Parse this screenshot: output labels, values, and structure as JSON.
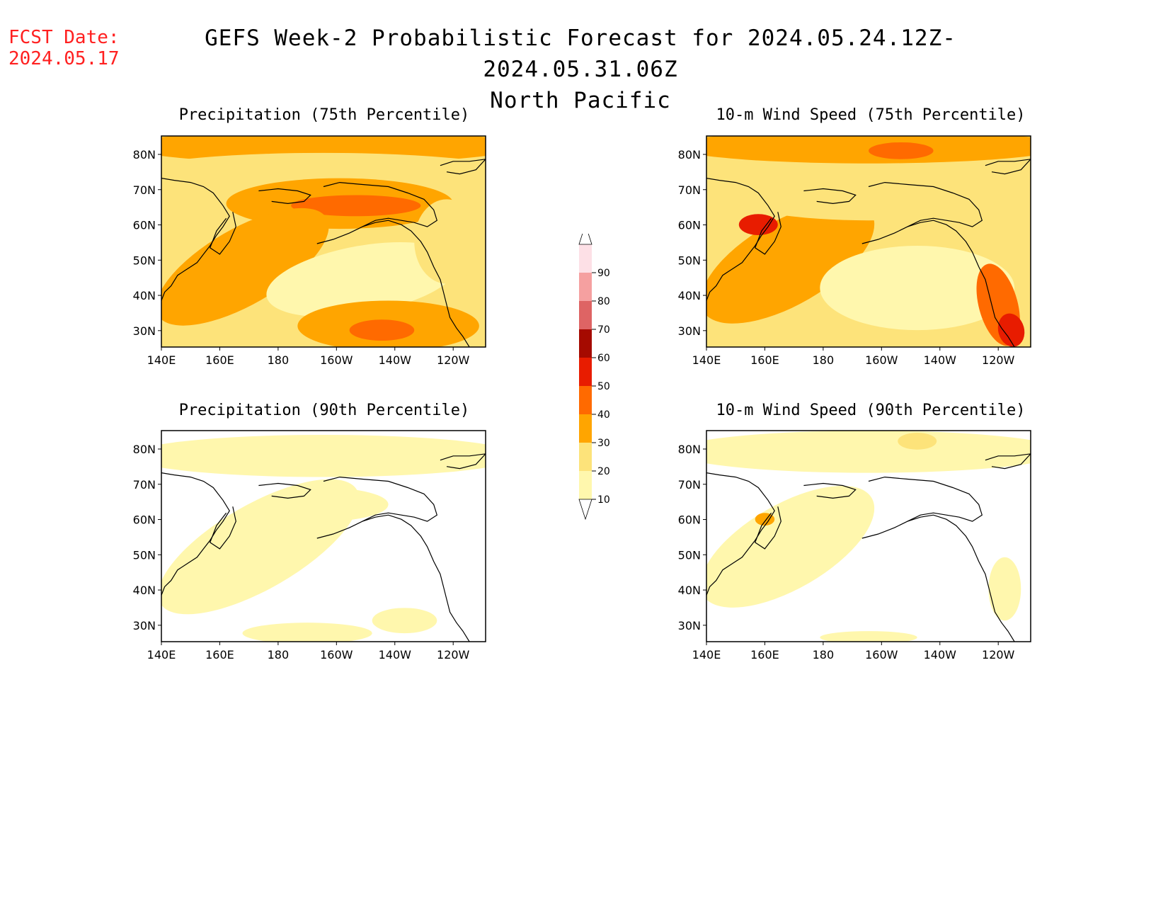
{
  "header": {
    "fcst_label": "FCST Date:",
    "fcst_date": "2024.05.17",
    "title": "GEFS Week-2 Probabilistic Forecast for 2024.05.24.12Z-2024.05.31.06Z",
    "subtitle": "North Pacific"
  },
  "axes": {
    "lon_ticks": [
      "140E",
      "160E",
      "180",
      "160W",
      "140W",
      "120W"
    ],
    "lat_ticks": [
      "80N",
      "70N",
      "60N",
      "50N",
      "40N",
      "30N"
    ]
  },
  "panels": [
    {
      "id": "precip75",
      "title": "Precipitation (75th Percentile)"
    },
    {
      "id": "wind75",
      "title": "10-m Wind Speed (75th Percentile)"
    },
    {
      "id": "precip90",
      "title": "Precipitation (90th Percentile)"
    },
    {
      "id": "wind90",
      "title": "10-m Wind Speed (90th Percentile)"
    }
  ],
  "colorbar": {
    "levels": [
      "10",
      "20",
      "30",
      "40",
      "50",
      "60",
      "70",
      "80",
      "90"
    ],
    "colors": {
      "c10": "#fff7ad",
      "c20": "#fde37a",
      "c30": "#ffa500",
      "c40": "#ff6a00",
      "c50": "#e81c00",
      "c60": "#a50a00",
      "c70": "#de6464",
      "c80": "#f5a0a0",
      "c90": "#fde0e6"
    }
  }
}
